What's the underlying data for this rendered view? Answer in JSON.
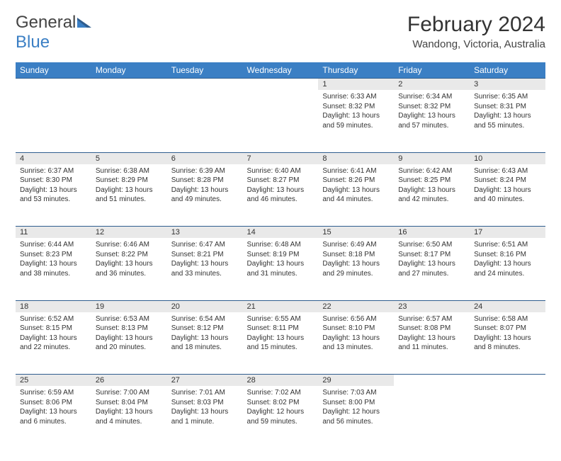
{
  "colors": {
    "header_bg": "#3b7fc4",
    "header_text": "#ffffff",
    "daynum_bg": "#e9e9e9",
    "rule": "#2f5d8e",
    "text": "#333333",
    "logo_accent": "#3b7fc4"
  },
  "logo": {
    "word1": "General",
    "word2": "Blue"
  },
  "title": "February 2024",
  "subtitle": "Wandong, Victoria, Australia",
  "day_headers": [
    "Sunday",
    "Monday",
    "Tuesday",
    "Wednesday",
    "Thursday",
    "Friday",
    "Saturday"
  ],
  "weeks": [
    {
      "nums": [
        "",
        "",
        "",
        "",
        "1",
        "2",
        "3"
      ],
      "info": [
        null,
        null,
        null,
        null,
        {
          "sunrise": "Sunrise: 6:33 AM",
          "sunset": "Sunset: 8:32 PM",
          "daylight": "Daylight: 13 hours and 59 minutes."
        },
        {
          "sunrise": "Sunrise: 6:34 AM",
          "sunset": "Sunset: 8:32 PM",
          "daylight": "Daylight: 13 hours and 57 minutes."
        },
        {
          "sunrise": "Sunrise: 6:35 AM",
          "sunset": "Sunset: 8:31 PM",
          "daylight": "Daylight: 13 hours and 55 minutes."
        }
      ]
    },
    {
      "nums": [
        "4",
        "5",
        "6",
        "7",
        "8",
        "9",
        "10"
      ],
      "info": [
        {
          "sunrise": "Sunrise: 6:37 AM",
          "sunset": "Sunset: 8:30 PM",
          "daylight": "Daylight: 13 hours and 53 minutes."
        },
        {
          "sunrise": "Sunrise: 6:38 AM",
          "sunset": "Sunset: 8:29 PM",
          "daylight": "Daylight: 13 hours and 51 minutes."
        },
        {
          "sunrise": "Sunrise: 6:39 AM",
          "sunset": "Sunset: 8:28 PM",
          "daylight": "Daylight: 13 hours and 49 minutes."
        },
        {
          "sunrise": "Sunrise: 6:40 AM",
          "sunset": "Sunset: 8:27 PM",
          "daylight": "Daylight: 13 hours and 46 minutes."
        },
        {
          "sunrise": "Sunrise: 6:41 AM",
          "sunset": "Sunset: 8:26 PM",
          "daylight": "Daylight: 13 hours and 44 minutes."
        },
        {
          "sunrise": "Sunrise: 6:42 AM",
          "sunset": "Sunset: 8:25 PM",
          "daylight": "Daylight: 13 hours and 42 minutes."
        },
        {
          "sunrise": "Sunrise: 6:43 AM",
          "sunset": "Sunset: 8:24 PM",
          "daylight": "Daylight: 13 hours and 40 minutes."
        }
      ]
    },
    {
      "nums": [
        "11",
        "12",
        "13",
        "14",
        "15",
        "16",
        "17"
      ],
      "info": [
        {
          "sunrise": "Sunrise: 6:44 AM",
          "sunset": "Sunset: 8:23 PM",
          "daylight": "Daylight: 13 hours and 38 minutes."
        },
        {
          "sunrise": "Sunrise: 6:46 AM",
          "sunset": "Sunset: 8:22 PM",
          "daylight": "Daylight: 13 hours and 36 minutes."
        },
        {
          "sunrise": "Sunrise: 6:47 AM",
          "sunset": "Sunset: 8:21 PM",
          "daylight": "Daylight: 13 hours and 33 minutes."
        },
        {
          "sunrise": "Sunrise: 6:48 AM",
          "sunset": "Sunset: 8:19 PM",
          "daylight": "Daylight: 13 hours and 31 minutes."
        },
        {
          "sunrise": "Sunrise: 6:49 AM",
          "sunset": "Sunset: 8:18 PM",
          "daylight": "Daylight: 13 hours and 29 minutes."
        },
        {
          "sunrise": "Sunrise: 6:50 AM",
          "sunset": "Sunset: 8:17 PM",
          "daylight": "Daylight: 13 hours and 27 minutes."
        },
        {
          "sunrise": "Sunrise: 6:51 AM",
          "sunset": "Sunset: 8:16 PM",
          "daylight": "Daylight: 13 hours and 24 minutes."
        }
      ]
    },
    {
      "nums": [
        "18",
        "19",
        "20",
        "21",
        "22",
        "23",
        "24"
      ],
      "info": [
        {
          "sunrise": "Sunrise: 6:52 AM",
          "sunset": "Sunset: 8:15 PM",
          "daylight": "Daylight: 13 hours and 22 minutes."
        },
        {
          "sunrise": "Sunrise: 6:53 AM",
          "sunset": "Sunset: 8:13 PM",
          "daylight": "Daylight: 13 hours and 20 minutes."
        },
        {
          "sunrise": "Sunrise: 6:54 AM",
          "sunset": "Sunset: 8:12 PM",
          "daylight": "Daylight: 13 hours and 18 minutes."
        },
        {
          "sunrise": "Sunrise: 6:55 AM",
          "sunset": "Sunset: 8:11 PM",
          "daylight": "Daylight: 13 hours and 15 minutes."
        },
        {
          "sunrise": "Sunrise: 6:56 AM",
          "sunset": "Sunset: 8:10 PM",
          "daylight": "Daylight: 13 hours and 13 minutes."
        },
        {
          "sunrise": "Sunrise: 6:57 AM",
          "sunset": "Sunset: 8:08 PM",
          "daylight": "Daylight: 13 hours and 11 minutes."
        },
        {
          "sunrise": "Sunrise: 6:58 AM",
          "sunset": "Sunset: 8:07 PM",
          "daylight": "Daylight: 13 hours and 8 minutes."
        }
      ]
    },
    {
      "nums": [
        "25",
        "26",
        "27",
        "28",
        "29",
        "",
        ""
      ],
      "info": [
        {
          "sunrise": "Sunrise: 6:59 AM",
          "sunset": "Sunset: 8:06 PM",
          "daylight": "Daylight: 13 hours and 6 minutes."
        },
        {
          "sunrise": "Sunrise: 7:00 AM",
          "sunset": "Sunset: 8:04 PM",
          "daylight": "Daylight: 13 hours and 4 minutes."
        },
        {
          "sunrise": "Sunrise: 7:01 AM",
          "sunset": "Sunset: 8:03 PM",
          "daylight": "Daylight: 13 hours and 1 minute."
        },
        {
          "sunrise": "Sunrise: 7:02 AM",
          "sunset": "Sunset: 8:02 PM",
          "daylight": "Daylight: 12 hours and 59 minutes."
        },
        {
          "sunrise": "Sunrise: 7:03 AM",
          "sunset": "Sunset: 8:00 PM",
          "daylight": "Daylight: 12 hours and 56 minutes."
        },
        null,
        null
      ]
    }
  ]
}
